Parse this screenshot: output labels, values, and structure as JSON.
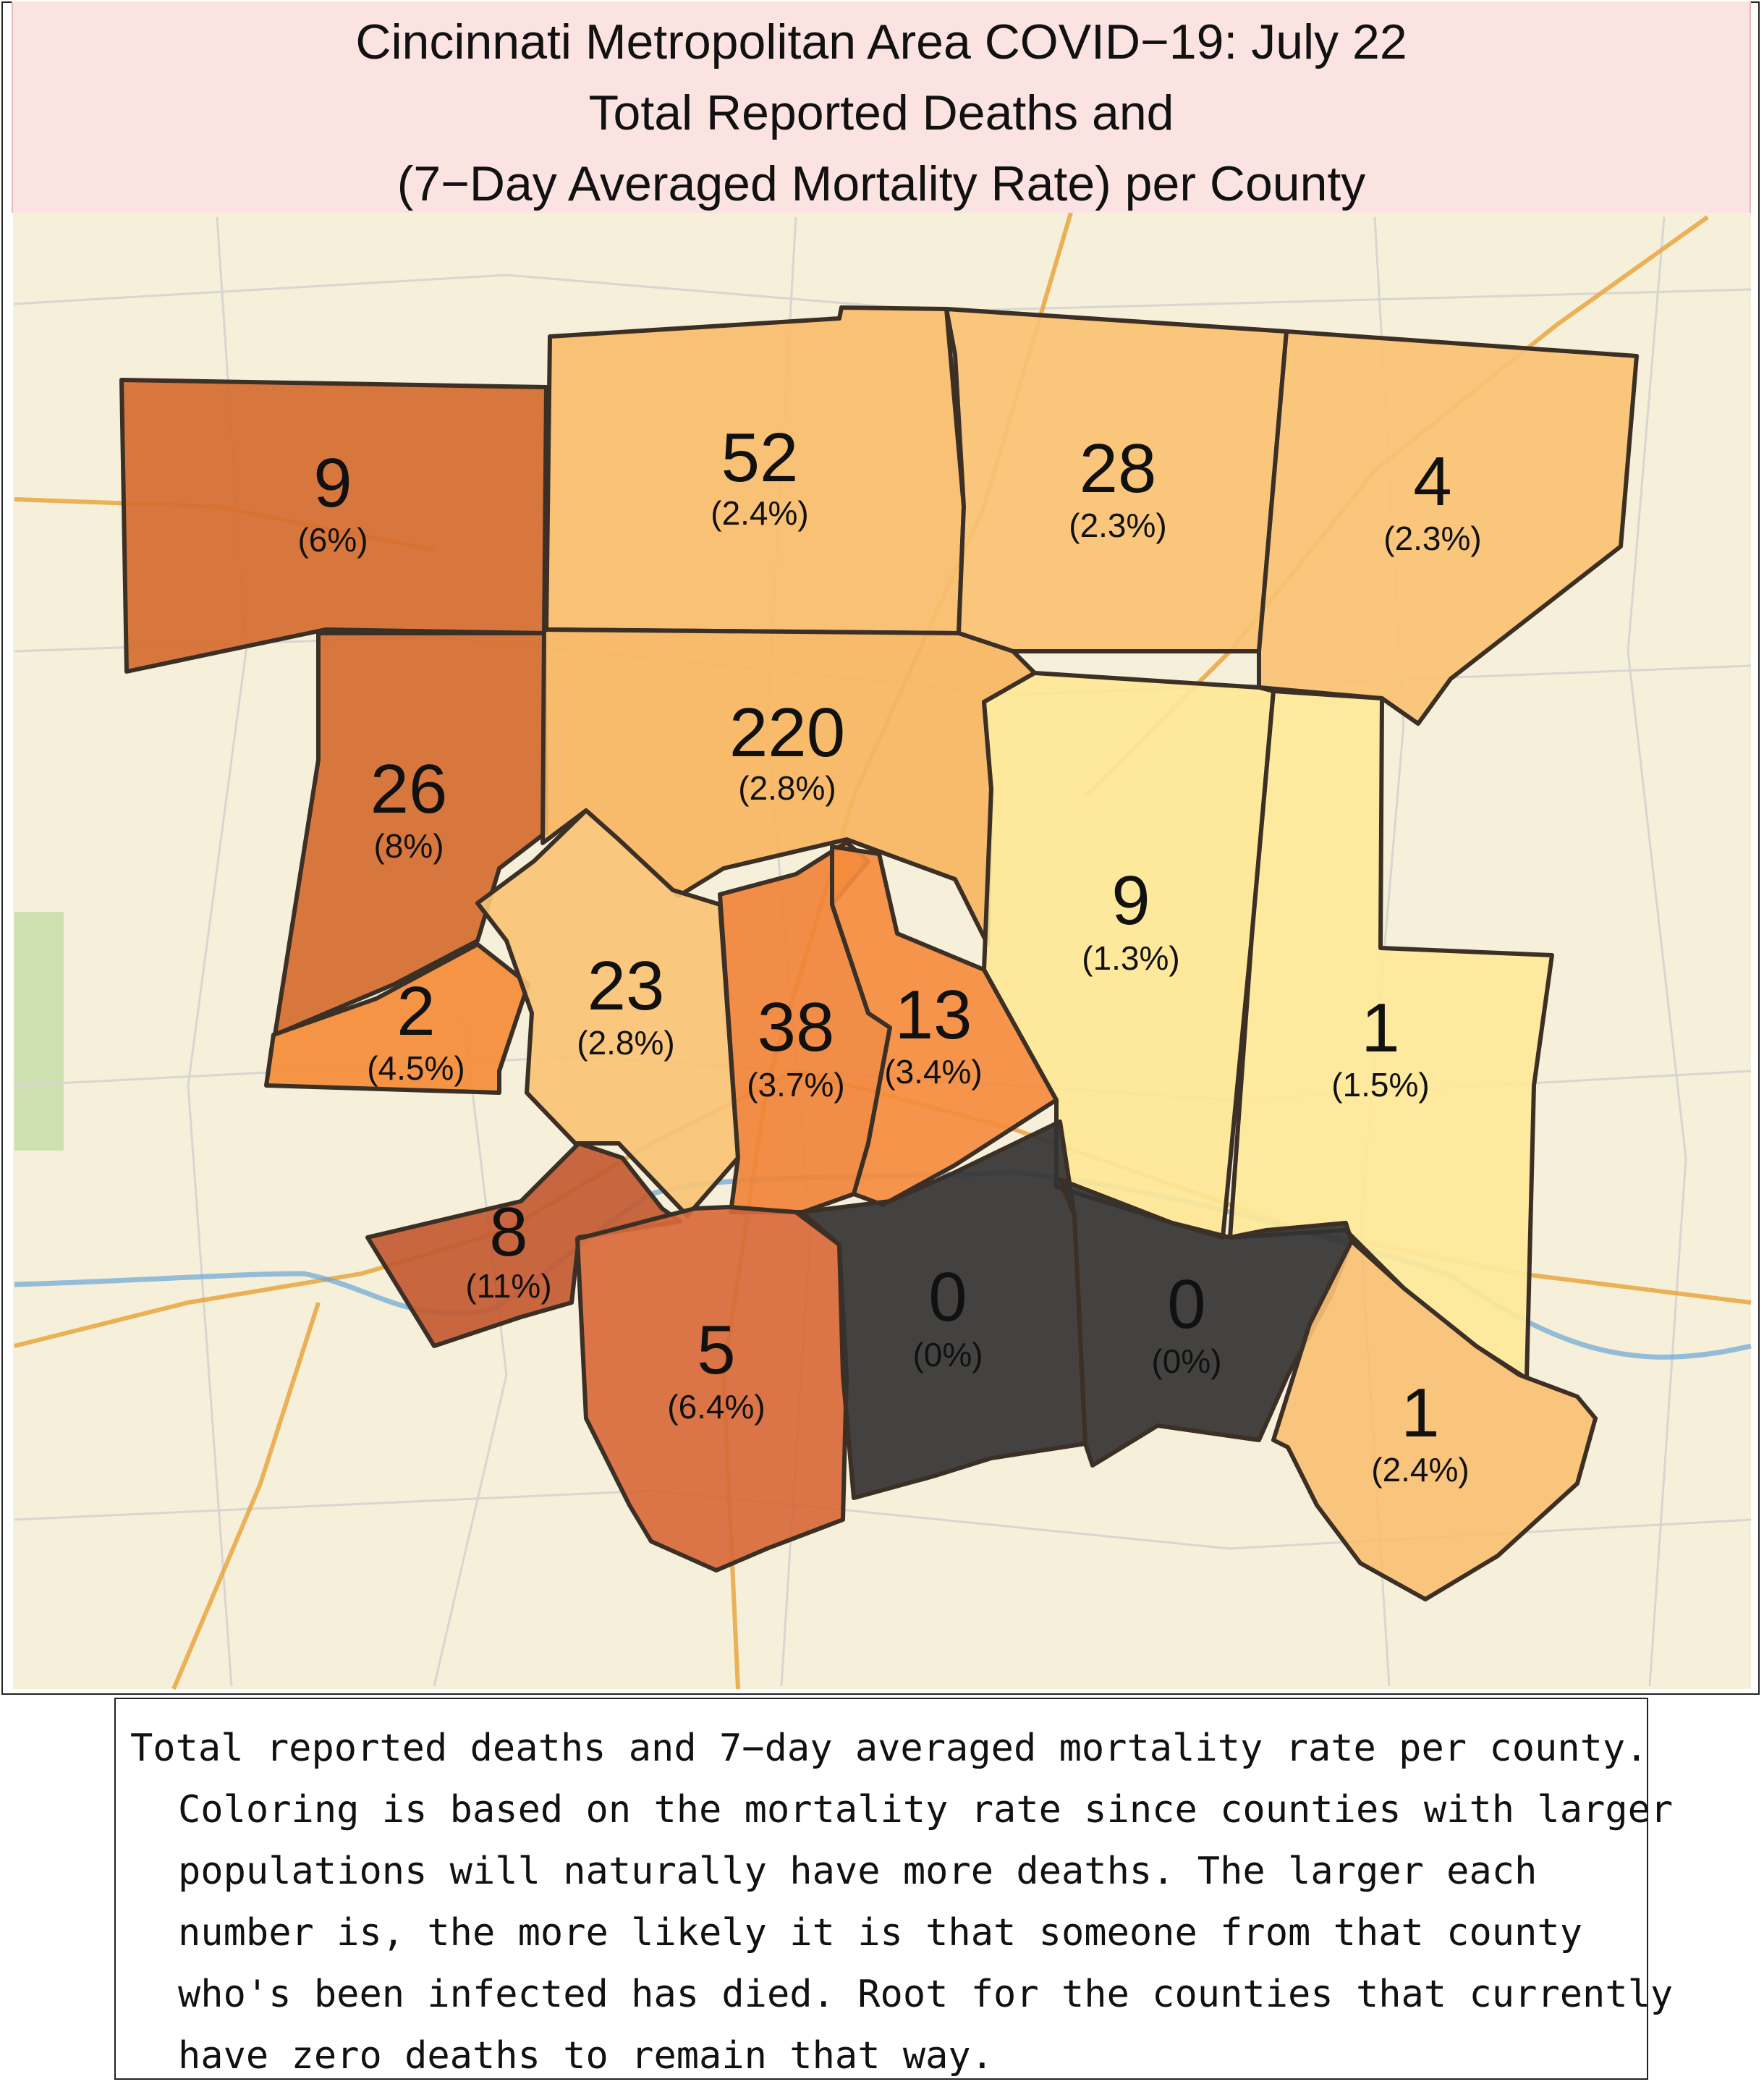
{
  "title": {
    "line1": "Cincinnati Metropolitan Area COVID−19: July 22",
    "line2": "Total Reported Deaths and",
    "line3": "(7−Day Averaged Mortality Rate) per County"
  },
  "colors": {
    "title_band": "#fbe3e1",
    "basemap": "#f6efd9",
    "highway": "#e8a640",
    "river": "#6aa7d8",
    "rate_low": "#fdeb94",
    "rate_mid": "#f7b764",
    "rate_high": "#f58a3c",
    "rate_very_high": "#d8672c",
    "rate_extreme": "#c75c32",
    "zero": "#333333",
    "border": "#3c3026"
  },
  "counties": [
    {
      "id": "nw-top",
      "deaths": "9",
      "rate": "(6%)",
      "rate_value": 6.0,
      "color": "#d56d30"
    },
    {
      "id": "n-1",
      "deaths": "52",
      "rate": "(2.4%)",
      "rate_value": 2.4,
      "color": "#f8bd6d"
    },
    {
      "id": "n-2",
      "deaths": "28",
      "rate": "(2.3%)",
      "rate_value": 2.3,
      "color": "#f9c274"
    },
    {
      "id": "n-3",
      "deaths": "4",
      "rate": "(2.3%)",
      "rate_value": 2.3,
      "color": "#f9c274"
    },
    {
      "id": "w-mid",
      "deaths": "26",
      "rate": "(8%)",
      "rate_value": 8.0,
      "color": "#d56d30"
    },
    {
      "id": "center",
      "deaths": "220",
      "rate": "(2.8%)",
      "rate_value": 2.8,
      "color": "#f6b662"
    },
    {
      "id": "sw-small",
      "deaths": "2",
      "rate": "(4.5%)",
      "rate_value": 4.5,
      "color": "#f58c3a"
    },
    {
      "id": "c-west",
      "deaths": "23",
      "rate": "(2.8%)",
      "rate_value": 2.8,
      "color": "#f9c376"
    },
    {
      "id": "c-mid",
      "deaths": "38",
      "rate": "(3.7%)",
      "rate_value": 3.7,
      "color": "#f0843a"
    },
    {
      "id": "c-east",
      "deaths": "13",
      "rate": "(3.4%)",
      "rate_value": 3.4,
      "color": "#f48c3e"
    },
    {
      "id": "e-1",
      "deaths": "9",
      "rate": "(1.3%)",
      "rate_value": 1.3,
      "color": "#fde796"
    },
    {
      "id": "e-2",
      "deaths": "1",
      "rate": "(1.5%)",
      "rate_value": 1.5,
      "color": "#fde99a"
    },
    {
      "id": "sw-river",
      "deaths": "8",
      "rate": "(11%)",
      "rate_value": 11.0,
      "color": "#c25a32"
    },
    {
      "id": "s-1",
      "deaths": "5",
      "rate": "(6.4%)",
      "rate_value": 6.4,
      "color": "#d8693a"
    },
    {
      "id": "s-2",
      "deaths": "0",
      "rate": "(0%)",
      "rate_value": 0.0,
      "color": "#333333"
    },
    {
      "id": "s-3",
      "deaths": "0",
      "rate": "(0%)",
      "rate_value": 0.0,
      "color": "#333333"
    },
    {
      "id": "se",
      "deaths": "1",
      "rate": "(2.4%)",
      "rate_value": 2.4,
      "color": "#f8c073"
    }
  ],
  "caption": "Total reported deaths and 7−day averaged mortality rate per county. Coloring is based on the mortality rate since counties with larger populations will naturally have more deaths. The larger each number is, the more likely it is that someone from that county who's been infected has died. Root for the counties that currently have zero deaths to remain that way."
}
